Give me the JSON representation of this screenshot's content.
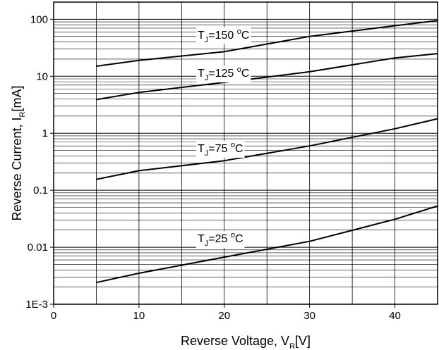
{
  "chart_data": {
    "type": "line",
    "xlabel": "Reverse Voltage, V",
    "xlabel_subscript": "R",
    "xlabel_unit": "[V]",
    "ylabel": "Reverse Current, I",
    "ylabel_subscript": "R",
    "ylabel_unit": "[mA]",
    "xlim": [
      0,
      45
    ],
    "ylim": [
      0.001,
      200
    ],
    "yscale": "log",
    "grid": true,
    "x_ticks": [
      0,
      10,
      20,
      30,
      40
    ],
    "x_tick_labels": [
      "0",
      "10",
      "20",
      "30",
      "40"
    ],
    "y_ticks": [
      0.001,
      0.01,
      0.1,
      1,
      10,
      100
    ],
    "y_tick_labels": [
      "1E-3",
      "0.01",
      "0.1",
      "1",
      "10",
      "100"
    ],
    "series": [
      {
        "label_main": "T",
        "label_sub": "J",
        "label_value": "=150 ",
        "label_deg": "o",
        "label_unit": "C",
        "x": [
          5,
          10,
          20,
          30,
          40,
          45
        ],
        "y": [
          15,
          19,
          27,
          50,
          77,
          95
        ]
      },
      {
        "label_main": "T",
        "label_sub": "J",
        "label_value": "=125 ",
        "label_deg": "o",
        "label_unit": "C",
        "x": [
          5,
          10,
          20,
          30,
          40,
          45
        ],
        "y": [
          3.9,
          5.2,
          7.8,
          12,
          21,
          25
        ]
      },
      {
        "label_main": "T",
        "label_sub": "J",
        "label_value": "=75 ",
        "label_deg": "o",
        "label_unit": "C",
        "x": [
          5,
          10,
          20,
          30,
          40,
          45
        ],
        "y": [
          0.155,
          0.22,
          0.33,
          0.6,
          1.2,
          1.8
        ]
      },
      {
        "label_main": "T",
        "label_sub": "J",
        "label_value": "=25 ",
        "label_deg": "o",
        "label_unit": "C",
        "x": [
          5,
          10,
          20,
          30,
          40,
          45
        ],
        "y": [
          0.0024,
          0.0035,
          0.0067,
          0.0127,
          0.031,
          0.053
        ]
      }
    ]
  }
}
